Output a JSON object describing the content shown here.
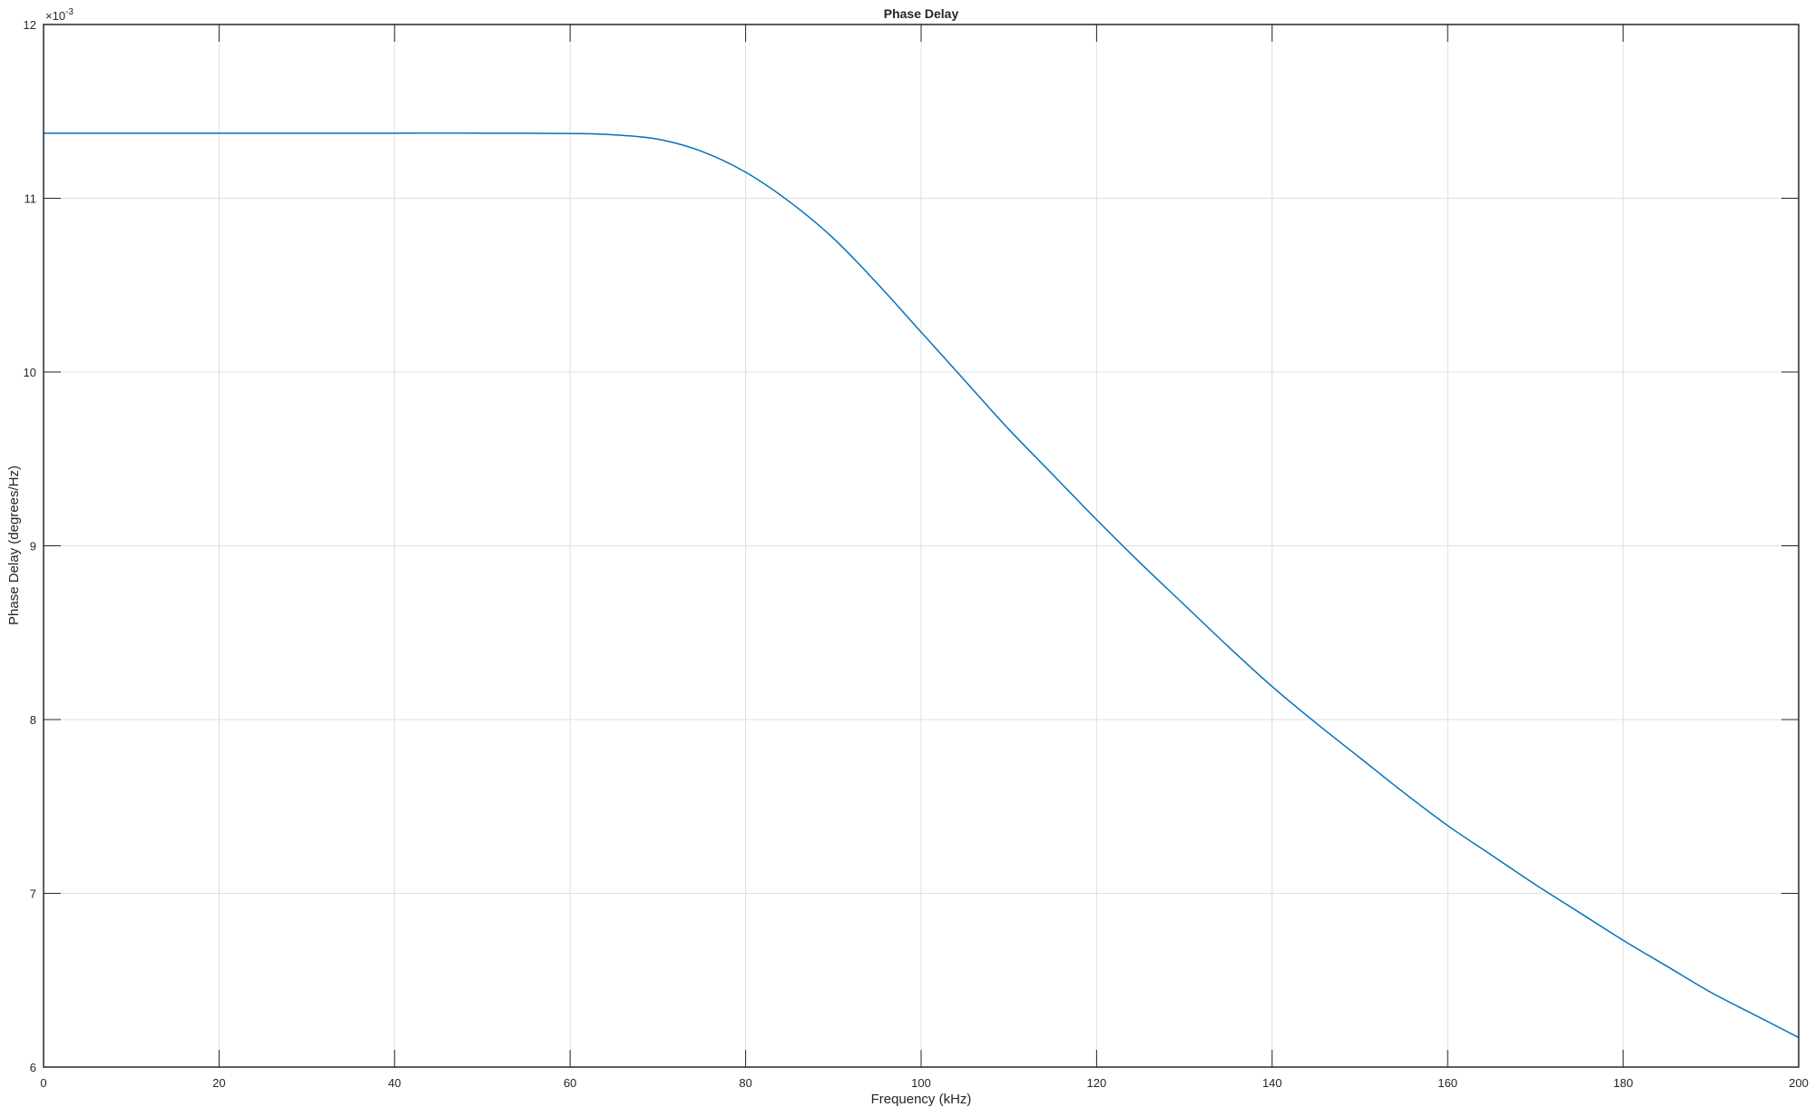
{
  "chart_data": {
    "type": "line",
    "title": "Phase Delay",
    "xlabel": "Frequency (kHz)",
    "ylabel": "Phase Delay (degrees/Hz)",
    "y_exponent_label": "×10",
    "y_exponent_power": "-3",
    "xlim": [
      0,
      200
    ],
    "ylim": [
      6,
      12
    ],
    "xticks": [
      0,
      20,
      40,
      60,
      80,
      100,
      120,
      140,
      160,
      180,
      200
    ],
    "yticks": [
      6,
      7,
      8,
      9,
      10,
      11,
      12
    ],
    "grid": true,
    "line_color": "#0072BD",
    "series": [
      {
        "x": [
          0,
          10,
          20,
          30,
          40,
          50,
          60,
          65,
          70,
          75,
          80,
          85,
          90,
          95,
          100,
          105,
          110,
          115,
          120,
          125,
          130,
          135,
          140,
          145,
          150,
          155,
          160,
          165,
          170,
          175,
          180,
          185,
          190,
          195,
          200
        ],
        "y": [
          11.375,
          11.375,
          11.375,
          11.375,
          11.375,
          11.375,
          11.373,
          11.365,
          11.34,
          11.27,
          11.15,
          10.98,
          10.77,
          10.51,
          10.23,
          9.95,
          9.67,
          9.41,
          9.15,
          8.9,
          8.66,
          8.42,
          8.19,
          7.98,
          7.78,
          7.58,
          7.39,
          7.22,
          7.05,
          6.89,
          6.73,
          6.58,
          6.43,
          6.3,
          6.17
        ]
      }
    ]
  }
}
